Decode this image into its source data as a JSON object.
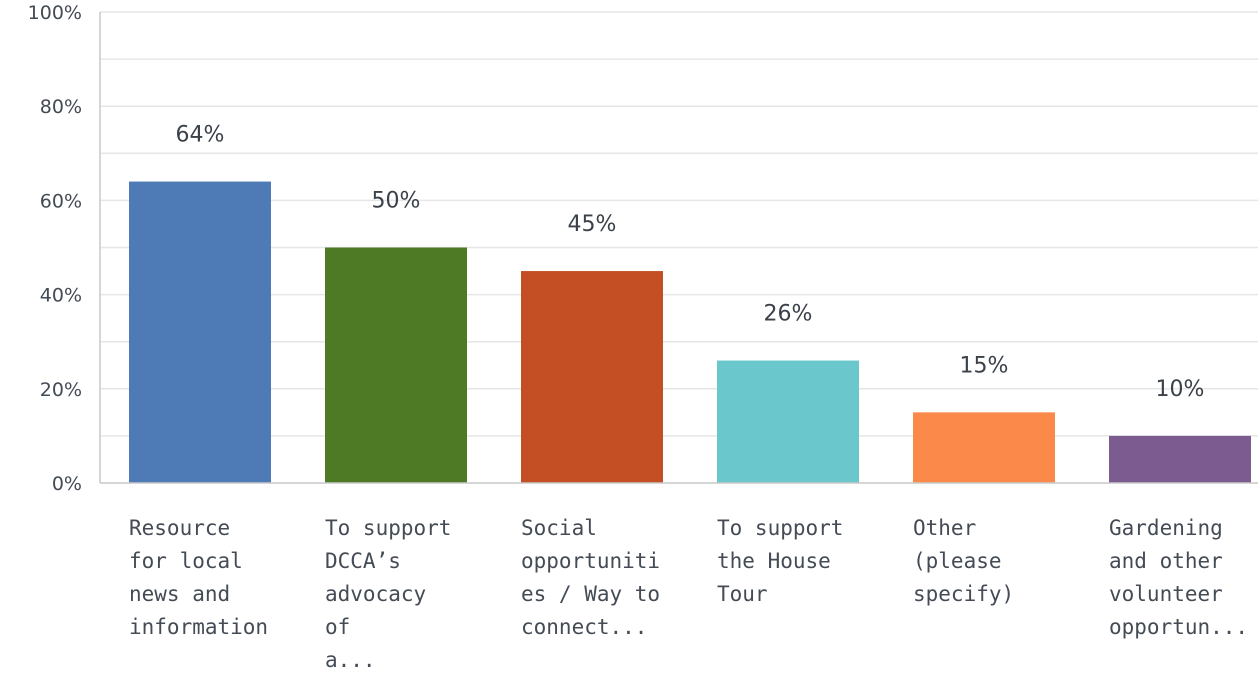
{
  "chart_data": {
    "type": "bar",
    "categories": [
      [
        "Resource",
        "for local",
        "news and",
        "information"
      ],
      [
        "To support",
        "DCCA’s",
        "advocacy",
        "of",
        "a..."
      ],
      [
        "Social",
        "opportuniti",
        "es / Way to",
        "connect..."
      ],
      [
        "To support",
        "the House",
        "Tour"
      ],
      [
        "Other",
        "(please",
        "specify)"
      ],
      [
        "Gardening",
        "and other",
        "volunteer",
        "opportun..."
      ]
    ],
    "values": [
      64,
      50,
      45,
      26,
      15,
      10
    ],
    "value_labels": [
      "64%",
      "50%",
      "45%",
      "26%",
      "15%",
      "10%"
    ],
    "colors": [
      "#4e7ab5",
      "#4e7a26",
      "#c44f24",
      "#6ac8cc",
      "#fb8a4a",
      "#7b5b90"
    ],
    "ylim": [
      0,
      100
    ],
    "yticks": [
      0,
      20,
      40,
      60,
      80,
      100
    ],
    "ytick_labels": [
      "0%",
      "20%",
      "40%",
      "60%",
      "80%",
      "100%"
    ],
    "grid": true,
    "title": "",
    "xlabel": "",
    "ylabel": ""
  }
}
